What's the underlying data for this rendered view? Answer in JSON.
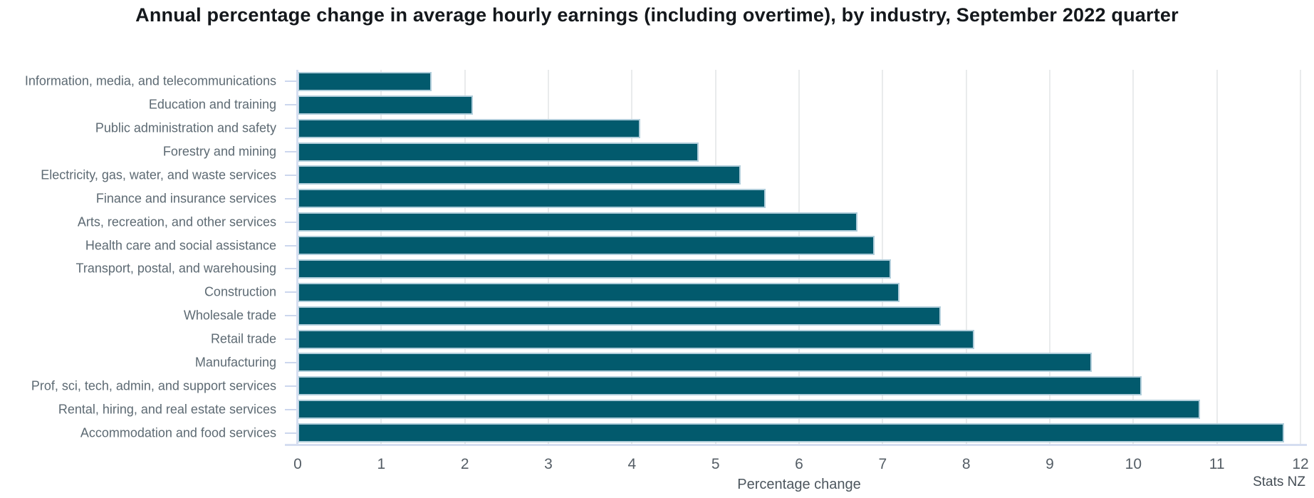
{
  "chart_data": {
    "type": "bar",
    "orientation": "horizontal",
    "title": "Annual percentage change in average hourly earnings (including overtime), by industry, September 2022 quarter",
    "xlabel": "Percentage change",
    "ylabel": "",
    "source": "Stats NZ",
    "xlim": [
      0,
      12
    ],
    "xticks": [
      0,
      1,
      2,
      3,
      4,
      5,
      6,
      7,
      8,
      9,
      10,
      11,
      12
    ],
    "grid": true,
    "legend": false,
    "categories": [
      "Information, media, and telecommunications",
      "Education and training",
      "Public administration and safety",
      "Forestry and mining",
      "Electricity, gas, water, and waste services",
      "Finance and insurance services",
      "Arts, recreation, and other services",
      "Health care and social assistance",
      "Transport, postal, and warehousing",
      "Construction",
      "Wholesale trade",
      "Retail trade",
      "Manufacturing",
      "Prof, sci, tech, admin, and support services",
      "Rental, hiring, and real estate services",
      "Accommodation and food services"
    ],
    "values": [
      1.6,
      2.1,
      4.1,
      4.8,
      5.3,
      5.6,
      6.7,
      6.9,
      7.1,
      7.2,
      7.7,
      8.1,
      9.5,
      10.1,
      10.8,
      11.8
    ],
    "colors": {
      "bar_fill": "#025a6d",
      "bar_stroke": "#b0cdda",
      "gridline": "#e9ebec",
      "axis_line": "#d5def0",
      "title_text": "#14181c",
      "category_text": "#5d6a73",
      "tick_text": "#555e66",
      "axis_title_text": "#4d565e",
      "source_text": "#454e56"
    }
  }
}
